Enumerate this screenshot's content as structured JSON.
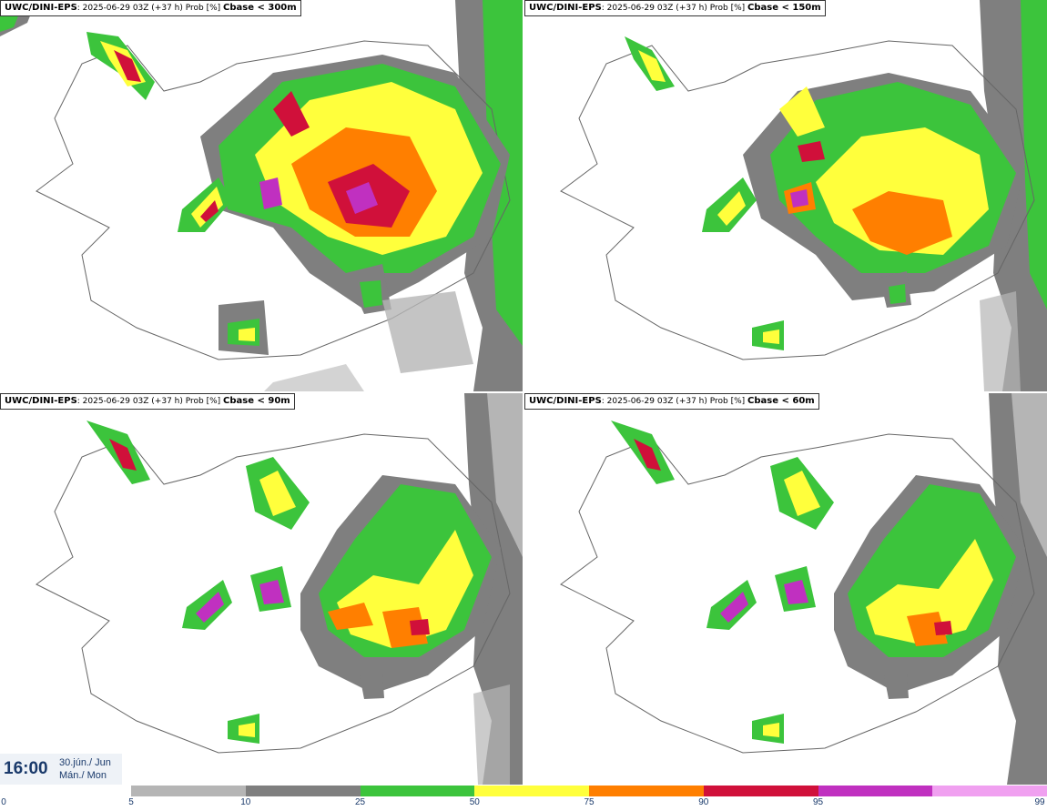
{
  "panels": [
    {
      "model": "UWC/DINI-EPS",
      "info": ": 2025-06-29 03Z (+37 h) Prob [%]",
      "variable": "Cbase < 300m"
    },
    {
      "model": "UWC/DINI-EPS",
      "info": ": 2025-06-29 03Z (+37 h) Prob [%]",
      "variable": "Cbase < 150m"
    },
    {
      "model": "UWC/DINI-EPS",
      "info": ": 2025-06-29 03Z (+37 h) Prob [%]",
      "variable": "Cbase < 90m"
    },
    {
      "model": "UWC/DINI-EPS",
      "info": ": 2025-06-29 03Z (+37 h) Prob [%]",
      "variable": "Cbase < 60m"
    }
  ],
  "valid_time": {
    "time": "16:00",
    "date_line1": "30.jún./ Jun",
    "date_line2": "Mán./ Mon"
  },
  "colorbar": {
    "ticks": [
      "0",
      "5",
      "10",
      "25",
      "50",
      "75",
      "90",
      "95",
      "99"
    ],
    "colors": [
      "#b5b5b5",
      "#7f7f7f",
      "#3cc43c",
      "#ffff3c",
      "#ff7f00",
      "#d0103a",
      "#c030c0",
      "#f0a0f0"
    ]
  }
}
